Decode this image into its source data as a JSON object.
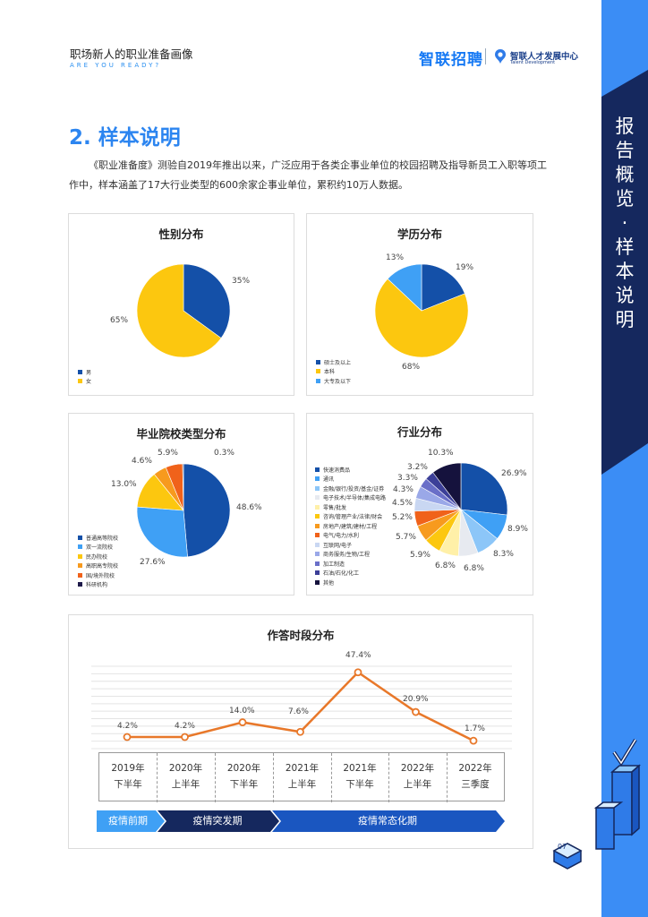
{
  "header": {
    "title": "职场新人的职业准备画像",
    "subtitle": "ARE YOU READY?",
    "brand": "智联招聘",
    "brand2_name": "智联人才发展中心",
    "brand2_en": "Talent Development"
  },
  "sidebar": {
    "chars": [
      "报",
      "告",
      "概",
      "览",
      "·",
      "样",
      "本",
      "说",
      "明"
    ]
  },
  "section": {
    "title": "2. 样本说明",
    "intro": "《职业准备度》测验自2019年推出以来，广泛应用于各类企事业单位的校园招聘及指导新员工入职等项工作中，样本涵盖了17大行业类型的600余家企事业单位，累积约10万人数据。"
  },
  "colors": {
    "accent": "#2c85f0",
    "sidebar": "#3b8df5",
    "navy": "#1a3f8a",
    "line": "#e8782a"
  },
  "chart_data": [
    {
      "type": "pie",
      "title": "性别分布",
      "labels": [
        "男",
        "女"
      ],
      "values": [
        35,
        65
      ],
      "value_labels": [
        "35%",
        "65%"
      ],
      "colors": [
        "#1450a8",
        "#fcc70f"
      ],
      "legend_position": "bottom-left"
    },
    {
      "type": "pie",
      "title": "学历分布",
      "labels": [
        "硕士及以上",
        "本科",
        "大专及以下"
      ],
      "values": [
        19,
        68,
        13
      ],
      "value_labels": [
        "19%",
        "68%",
        "13%"
      ],
      "colors": [
        "#1450a8",
        "#fcc70f",
        "#3fa0f5"
      ],
      "legend_position": "bottom-left"
    },
    {
      "type": "pie",
      "title": "毕业院校类型分布",
      "labels": [
        "普通高等院校",
        "双一流院校",
        "民办院校",
        "高职高专院校",
        "国/境外院校",
        "科研机构"
      ],
      "values": [
        48.6,
        27.6,
        13.0,
        4.6,
        5.9,
        0.3
      ],
      "value_labels": [
        "48.6%",
        "27.6%",
        "13.0%",
        "4.6%",
        "5.9%",
        "0.3%"
      ],
      "colors": [
        "#1450a8",
        "#3fa0f5",
        "#fcc70f",
        "#f79a1e",
        "#f0621a",
        "#1e1a4a"
      ],
      "legend_position": "bottom-left"
    },
    {
      "type": "pie",
      "title": "行业分布",
      "labels": [
        "快速消费品",
        "通讯",
        "金融/银行/投资/基金/证券",
        "电子技术/半导体/集成电路",
        "零售/批发",
        "咨询/管理产业/法律/财会",
        "房地产/建筑/建材/工程",
        "电气/电力/水利",
        "互联网/电子",
        "商务服务/生物/工程",
        "加工制造",
        "石油/石化/化工",
        "其他"
      ],
      "values": [
        26.9,
        8.9,
        8.3,
        6.8,
        6.8,
        5.9,
        5.7,
        5.2,
        4.5,
        4.3,
        3.3,
        3.2,
        10.3
      ],
      "value_labels": [
        "26.9%",
        "8.9%",
        "8.3%",
        "6.8%",
        "6.8%",
        "5.9%",
        "5.7%",
        "5.2%",
        "4.5%",
        "4.3%",
        "3.3%",
        "3.2%",
        "10.3%"
      ],
      "colors": [
        "#1450a8",
        "#3fa0f5",
        "#8cc6f8",
        "#e7eaf0",
        "#fff0a8",
        "#fcc70f",
        "#f79a1e",
        "#f0621a",
        "#c9d7f2",
        "#9aa8e8",
        "#6a6fc8",
        "#3c3f98",
        "#15123d"
      ],
      "legend_position": "left"
    },
    {
      "type": "line",
      "title": "作答时段分布",
      "categories": [
        [
          "2019年",
          "下半年"
        ],
        [
          "2020年",
          "上半年"
        ],
        [
          "2020年",
          "下半年"
        ],
        [
          "2021年",
          "上半年"
        ],
        [
          "2021年",
          "下半年"
        ],
        [
          "2022年",
          "上半年"
        ],
        [
          "2022年",
          "三季度"
        ]
      ],
      "values": [
        4.2,
        4.2,
        14.0,
        7.6,
        47.4,
        20.9,
        1.7
      ],
      "value_labels": [
        "4.2%",
        "4.2%",
        "14.0%",
        "7.6%",
        "47.4%",
        "20.9%",
        "1.7%"
      ],
      "ylim": [
        0,
        55
      ],
      "grid": true,
      "color": "#e8782a",
      "phases": [
        "疫情前期",
        "疫情突发期",
        "疫情常态化期"
      ]
    }
  ],
  "page": {
    "number": "07"
  }
}
